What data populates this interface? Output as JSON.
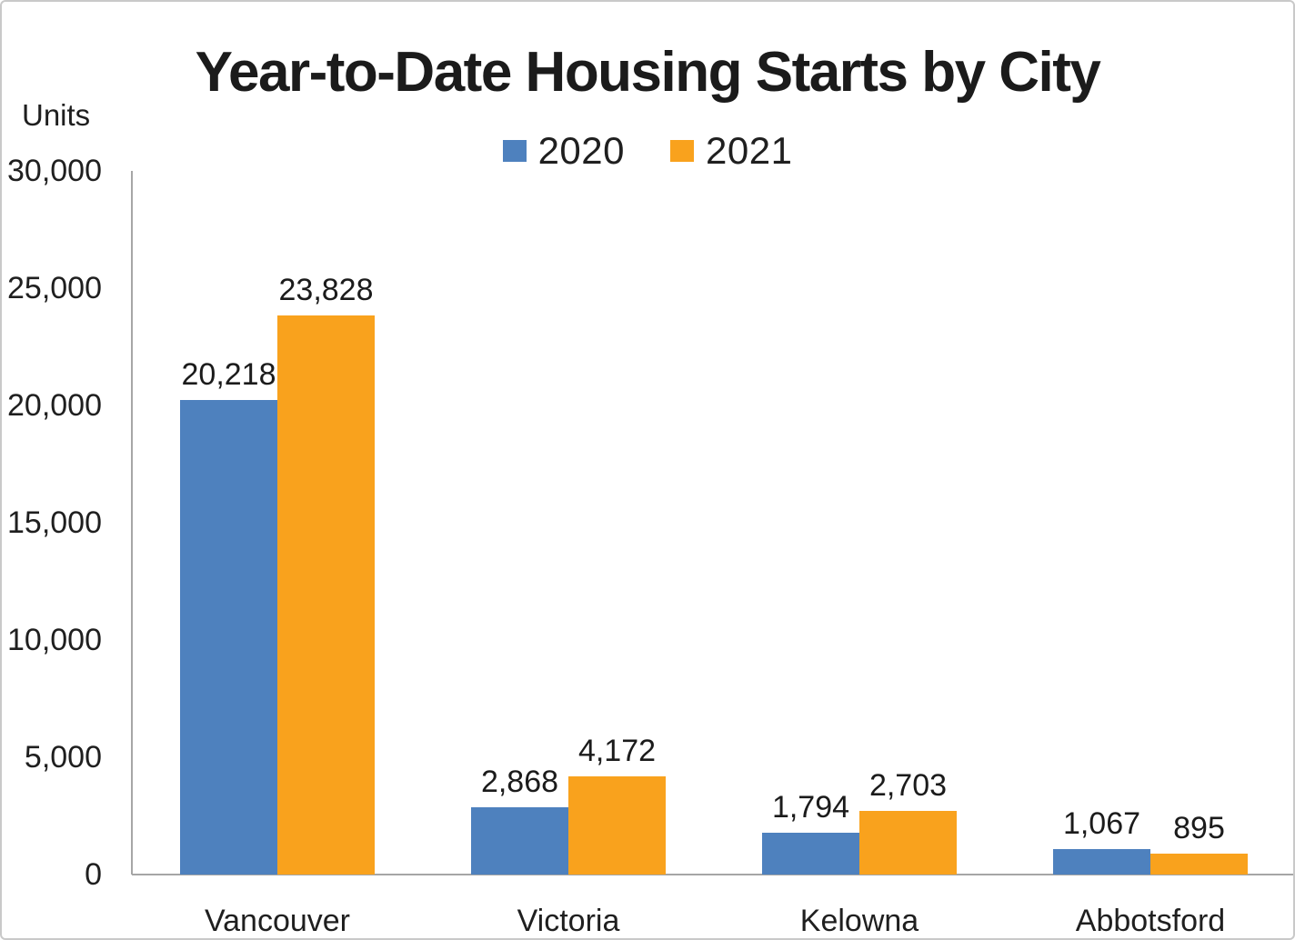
{
  "chart_data": {
    "type": "bar",
    "title": "Year-to-Date Housing Starts by City",
    "ylabel": "Units",
    "xlabel": "",
    "categories": [
      "Vancouver",
      "Victoria",
      "Kelowna",
      "Abbotsford"
    ],
    "series": [
      {
        "name": "2020",
        "color": "#4E81BE",
        "values": [
          20218,
          2868,
          1794,
          1067
        ]
      },
      {
        "name": "2021",
        "color": "#F9A21D",
        "values": [
          23828,
          4172,
          2703,
          895
        ]
      }
    ],
    "value_labels": [
      [
        "20,218",
        "2,868",
        "1,794",
        "1,067"
      ],
      [
        "23,828",
        "4,172",
        "2,703",
        "895"
      ]
    ],
    "ylim": [
      0,
      30000
    ],
    "ytick_step": 5000,
    "ytick_labels": [
      "0",
      "5,000",
      "10,000",
      "15,000",
      "20,000",
      "25,000",
      "30,000"
    ],
    "grid": false,
    "legend_position": "top-center",
    "colors": {
      "axis": "#a6a6a6",
      "text": "#1f1f1f",
      "title": "#1b1b1b",
      "border": "#c9c9c9",
      "background": "#ffffff"
    }
  }
}
